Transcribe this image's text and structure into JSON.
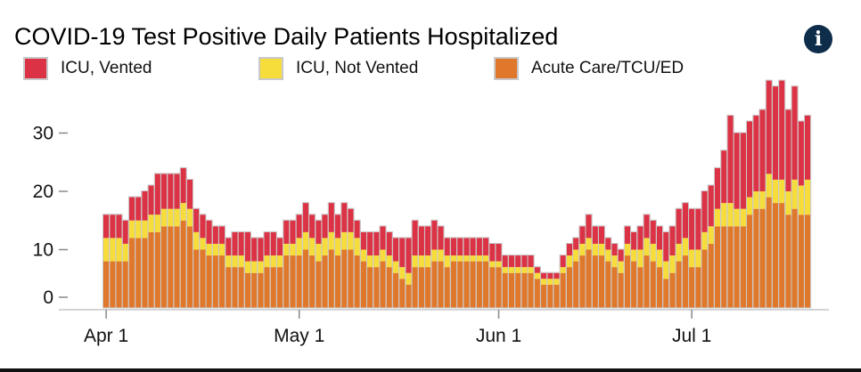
{
  "colors": {
    "vented": "#dc3245",
    "not_vented": "#f6dd3c",
    "acute": "#e0782c",
    "bar_border": "#c8c8c8",
    "info_bg": "#0d2d4a"
  },
  "header": {
    "title": "COVID-19 Test Positive Daily Patients Hospitalized",
    "info_icon": "info-icon",
    "info_glyph": "i"
  },
  "legend": [
    {
      "label": "ICU, Vented",
      "color": "#dc3245"
    },
    {
      "label": "ICU, Not Vented",
      "color": "#f6dd3c"
    },
    {
      "label": "Acute Care/TCU/ED",
      "color": "#e0782c"
    }
  ],
  "chart_data": {
    "type": "bar",
    "stacked": true,
    "title": "COVID-19 Test Positive Daily Patients Hospitalized",
    "xlabel": "",
    "ylabel": "",
    "ylim": [
      0,
      35
    ],
    "yticks": [
      0,
      10,
      20,
      30
    ],
    "xticks": [
      {
        "label": "Apr 1",
        "index": 0
      },
      {
        "label": "May 1",
        "index": 30
      },
      {
        "label": "Jun 1",
        "index": 61
      },
      {
        "label": "Jul 1",
        "index": 91
      }
    ],
    "start_date": "2020-04-01",
    "series": [
      {
        "name": "ICU, Vented",
        "values": [
          4,
          4,
          4,
          4,
          4,
          4,
          5,
          5,
          7,
          6,
          6,
          6,
          6,
          5,
          4,
          4,
          4,
          3,
          3,
          3,
          4,
          4,
          5,
          4,
          4,
          4,
          4,
          3,
          4,
          4,
          4,
          5,
          4,
          4,
          4,
          5,
          4,
          5,
          4,
          3,
          3,
          4,
          4,
          4,
          4,
          4,
          5,
          6,
          6,
          5,
          5,
          5,
          4,
          3,
          3,
          3,
          3,
          3,
          3,
          3,
          3,
          3,
          2,
          2,
          2,
          2,
          2,
          1,
          1,
          1,
          1,
          2,
          2,
          2,
          3,
          4,
          3,
          3,
          2,
          2,
          2,
          3,
          3,
          4,
          4,
          4,
          4,
          5,
          5,
          6,
          6,
          7,
          7,
          7,
          7,
          7,
          9,
          15,
          13,
          13,
          13,
          13,
          14,
          16,
          16,
          17,
          14,
          16,
          11,
          11
        ]
      },
      {
        "name": "ICU, Not Vented",
        "values": [
          4,
          4,
          4,
          3,
          3,
          3,
          3,
          3,
          3,
          3,
          3,
          3,
          3,
          3,
          3,
          2,
          2,
          2,
          2,
          2,
          2,
          2,
          2,
          2,
          2,
          2,
          2,
          2,
          2,
          2,
          3,
          3,
          3,
          3,
          3,
          3,
          3,
          3,
          3,
          3,
          2,
          2,
          2,
          2,
          2,
          2,
          2,
          2,
          2,
          2,
          2,
          2,
          2,
          2,
          1,
          1,
          1,
          1,
          1,
          1,
          1,
          1,
          1,
          1,
          1,
          1,
          1,
          1,
          1,
          1,
          1,
          1,
          2,
          2,
          2,
          2,
          2,
          2,
          2,
          2,
          2,
          2,
          2,
          3,
          3,
          3,
          3,
          3,
          3,
          3,
          3,
          3,
          3,
          3,
          3,
          3,
          4,
          4,
          3,
          3,
          3,
          3,
          3,
          4,
          4,
          4,
          4,
          5,
          5,
          6
        ]
      },
      {
        "name": "Acute Care/TCU/ED",
        "values": [
          8,
          8,
          8,
          8,
          12,
          12,
          12,
          13,
          13,
          14,
          14,
          14,
          15,
          14,
          10,
          10,
          9,
          9,
          9,
          7,
          7,
          7,
          6,
          6,
          6,
          7,
          7,
          7,
          9,
          9,
          9,
          10,
          9,
          8,
          9,
          10,
          9,
          10,
          10,
          9,
          8,
          7,
          7,
          8,
          7,
          6,
          5,
          4,
          7,
          7,
          7,
          8,
          8,
          7,
          8,
          8,
          8,
          8,
          8,
          8,
          7,
          7,
          6,
          6,
          6,
          6,
          6,
          5,
          4,
          4,
          4,
          6,
          7,
          8,
          9,
          10,
          9,
          9,
          8,
          7,
          6,
          9,
          8,
          7,
          9,
          8,
          7,
          5,
          6,
          8,
          9,
          7,
          7,
          10,
          11,
          14,
          14,
          14,
          14,
          14,
          16,
          17,
          17,
          19,
          18,
          18,
          16,
          17,
          16,
          16
        ]
      }
    ]
  }
}
